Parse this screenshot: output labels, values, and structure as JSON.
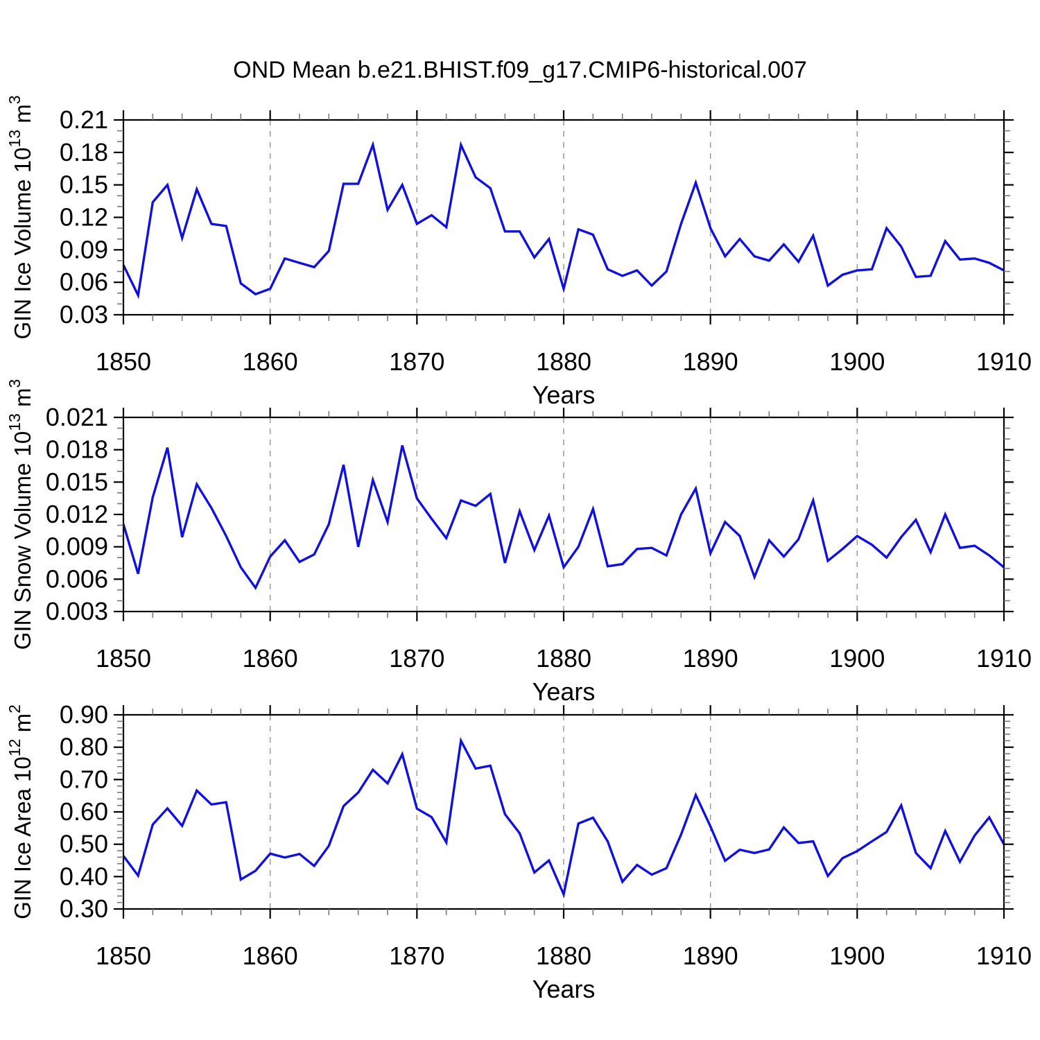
{
  "title": "OND Mean b.e21.BHIST.f09_g17.CMIP6-historical.007",
  "xlabel": "Years",
  "line_color": "#1111dd",
  "grid_color": "#999999",
  "axis_color": "#000000",
  "years": [
    1850,
    1851,
    1852,
    1853,
    1854,
    1855,
    1856,
    1857,
    1858,
    1859,
    1860,
    1861,
    1862,
    1863,
    1864,
    1865,
    1866,
    1867,
    1868,
    1869,
    1870,
    1871,
    1872,
    1873,
    1874,
    1875,
    1876,
    1877,
    1878,
    1879,
    1880,
    1881,
    1882,
    1883,
    1884,
    1885,
    1886,
    1887,
    1888,
    1889,
    1890,
    1891,
    1892,
    1893,
    1894,
    1895,
    1896,
    1897,
    1898,
    1899,
    1900,
    1901,
    1902,
    1903,
    1904,
    1905,
    1906,
    1907,
    1908,
    1909,
    1910
  ],
  "chart_data": [
    {
      "type": "line",
      "name": "gin-ice-volume",
      "ylabel": "GIN Ice Volume 10^13 m^3",
      "ylabel_segments": [
        {
          "t": "GIN Ice Volume 10"
        },
        {
          "sup": "13"
        },
        {
          "t": " m"
        },
        {
          "sup": "3"
        }
      ],
      "ylim": [
        0.03,
        0.21
      ],
      "yticks": [
        0.03,
        0.06,
        0.09,
        0.12,
        0.15,
        0.18,
        0.21
      ],
      "ytick_labels": [
        "0.03",
        "0.06",
        "0.09",
        "0.12",
        "0.15",
        "0.18",
        "0.21"
      ],
      "y_minor_step": 0.01,
      "xlim": [
        1850,
        1910
      ],
      "xticks": [
        1850,
        1860,
        1870,
        1880,
        1890,
        1900,
        1910
      ],
      "xtick_labels": [
        "1850",
        "1860",
        "1870",
        "1880",
        "1890",
        "1900",
        "1910"
      ],
      "x_minor_step": 2,
      "grid_x": [
        1860,
        1870,
        1880,
        1890,
        1900
      ],
      "xlabel": "Years",
      "values": [
        0.076,
        0.048,
        0.134,
        0.15,
        0.101,
        0.146,
        0.114,
        0.112,
        0.059,
        0.049,
        0.054,
        0.082,
        0.078,
        0.074,
        0.089,
        0.151,
        0.151,
        0.187,
        0.127,
        0.15,
        0.114,
        0.122,
        0.111,
        0.187,
        0.157,
        0.147,
        0.107,
        0.107,
        0.083,
        0.1,
        0.054,
        0.109,
        0.104,
        0.072,
        0.066,
        0.071,
        0.057,
        0.07,
        0.114,
        0.152,
        0.11,
        0.084,
        0.1,
        0.084,
        0.08,
        0.095,
        0.079,
        0.103,
        0.057,
        0.067,
        0.071,
        0.072,
        0.11,
        0.093,
        0.065,
        0.066,
        0.098,
        0.081,
        0.082,
        0.078,
        0.071
      ]
    },
    {
      "type": "line",
      "name": "gin-snow-volume",
      "ylabel": "GIN Snow Volume 10^13 m^3",
      "ylabel_segments": [
        {
          "t": "GIN Snow Volume 10"
        },
        {
          "sup": "13"
        },
        {
          "t": " m"
        },
        {
          "sup": "3"
        }
      ],
      "ylim": [
        0.003,
        0.021
      ],
      "yticks": [
        0.003,
        0.006,
        0.009,
        0.012,
        0.015,
        0.018,
        0.021
      ],
      "ytick_labels": [
        "0.003",
        "0.006",
        "0.009",
        "0.012",
        "0.015",
        "0.018",
        "0.021"
      ],
      "y_minor_step": 0.001,
      "xlim": [
        1850,
        1910
      ],
      "xticks": [
        1850,
        1860,
        1870,
        1880,
        1890,
        1900,
        1910
      ],
      "xtick_labels": [
        "1850",
        "1860",
        "1870",
        "1880",
        "1890",
        "1900",
        "1910"
      ],
      "x_minor_step": 2,
      "grid_x": [
        1860,
        1870,
        1880,
        1890,
        1900
      ],
      "xlabel": "Years",
      "values": [
        0.0111,
        0.0065,
        0.0136,
        0.0182,
        0.0099,
        0.0148,
        0.0126,
        0.01,
        0.0071,
        0.0052,
        0.0081,
        0.0096,
        0.0076,
        0.0083,
        0.0111,
        0.0166,
        0.009,
        0.0152,
        0.0113,
        0.0184,
        0.0135,
        0.0116,
        0.0098,
        0.0133,
        0.0128,
        0.0139,
        0.0075,
        0.0123,
        0.0087,
        0.0119,
        0.0071,
        0.009,
        0.0125,
        0.0072,
        0.0074,
        0.0088,
        0.0089,
        0.0082,
        0.012,
        0.0144,
        0.0084,
        0.0113,
        0.01,
        0.0062,
        0.0096,
        0.0081,
        0.0097,
        0.0133,
        0.0077,
        0.0088,
        0.01,
        0.0092,
        0.008,
        0.0099,
        0.0115,
        0.0085,
        0.012,
        0.0089,
        0.0091,
        0.0082,
        0.0071
      ]
    },
    {
      "type": "line",
      "name": "gin-ice-area",
      "ylabel": "GIN Ice Area 10^12 m^2",
      "ylabel_segments": [
        {
          "t": "GIN Ice Area 10"
        },
        {
          "sup": "12"
        },
        {
          "t": " m"
        },
        {
          "sup": "2"
        }
      ],
      "ylim": [
        0.3,
        0.9
      ],
      "yticks": [
        0.3,
        0.4,
        0.5,
        0.6,
        0.7,
        0.8,
        0.9
      ],
      "ytick_labels": [
        "0.30",
        "0.40",
        "0.50",
        "0.60",
        "0.70",
        "0.80",
        "0.90"
      ],
      "y_minor_step": 0.02,
      "xlim": [
        1850,
        1910
      ],
      "xticks": [
        1850,
        1860,
        1870,
        1880,
        1890,
        1900,
        1910
      ],
      "xtick_labels": [
        "1850",
        "1860",
        "1870",
        "1880",
        "1890",
        "1900",
        "1910"
      ],
      "x_minor_step": 2,
      "grid_x": [
        1860,
        1870,
        1880,
        1890,
        1900
      ],
      "xlabel": "Years",
      "values": [
        0.464,
        0.403,
        0.561,
        0.611,
        0.557,
        0.666,
        0.623,
        0.63,
        0.391,
        0.418,
        0.471,
        0.459,
        0.47,
        0.433,
        0.495,
        0.618,
        0.66,
        0.73,
        0.688,
        0.778,
        0.61,
        0.584,
        0.506,
        0.82,
        0.734,
        0.743,
        0.593,
        0.534,
        0.413,
        0.45,
        0.345,
        0.564,
        0.582,
        0.509,
        0.384,
        0.436,
        0.406,
        0.426,
        0.53,
        0.652,
        0.555,
        0.449,
        0.483,
        0.473,
        0.484,
        0.552,
        0.504,
        0.509,
        0.402,
        0.457,
        0.479,
        0.509,
        0.538,
        0.62,
        0.473,
        0.426,
        0.541,
        0.446,
        0.527,
        0.583,
        0.5
      ]
    }
  ]
}
